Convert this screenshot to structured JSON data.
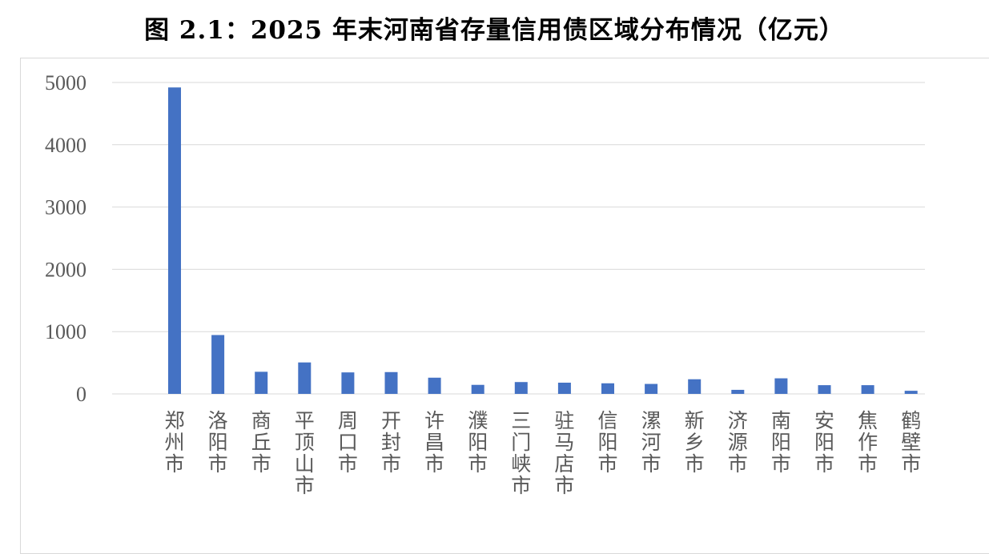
{
  "title": "图 2.1：2025 年末河南省存量信用债区域分布情况（亿元）",
  "chart_data": {
    "type": "bar",
    "title": "图 2.1：2025 年末河南省存量信用债区域分布情况（亿元）",
    "categories": [
      "郑州市",
      "洛阳市",
      "商丘市",
      "平顶山市",
      "周口市",
      "开封市",
      "许昌市",
      "濮阳市",
      "三门峡市",
      "驻马店市",
      "信阳市",
      "漯河市",
      "新乡市",
      "济源市",
      "南阳市",
      "安阳市",
      "焦作市",
      "鹤壁市"
    ],
    "values": [
      4920,
      945,
      355,
      505,
      345,
      350,
      260,
      145,
      190,
      180,
      170,
      160,
      235,
      65,
      250,
      140,
      140,
      50
    ],
    "yticks": [
      0,
      1000,
      2000,
      3000,
      4000,
      5000
    ],
    "ylim": [
      0,
      5000
    ],
    "xlabel": "",
    "ylabel": "",
    "grid": true,
    "legend": "none",
    "bar_color": "#4472C4",
    "grid_color": "#d9d9d9"
  }
}
